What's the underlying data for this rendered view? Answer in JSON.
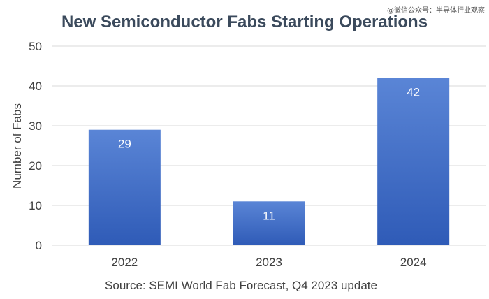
{
  "chart_data": {
    "type": "bar",
    "title": "New Semiconductor Fabs Starting Operations",
    "xlabel": "",
    "ylabel": "Number of Fabs",
    "categories": [
      "2022",
      "2023",
      "2024"
    ],
    "values": [
      29,
      11,
      42
    ],
    "data_labels": [
      "29",
      "11",
      "42"
    ],
    "ylim": [
      0,
      50
    ],
    "yticks": [
      "0",
      "10",
      "20",
      "30",
      "40",
      "50"
    ],
    "grid": true,
    "source": "Source: SEMI World Fab Forecast, Q4 2023 update",
    "watermark": "@微信公众号：半导体行业观察",
    "colors": {
      "bar_top": "#5a85d6",
      "bar_bottom": "#2f5bb7"
    }
  }
}
